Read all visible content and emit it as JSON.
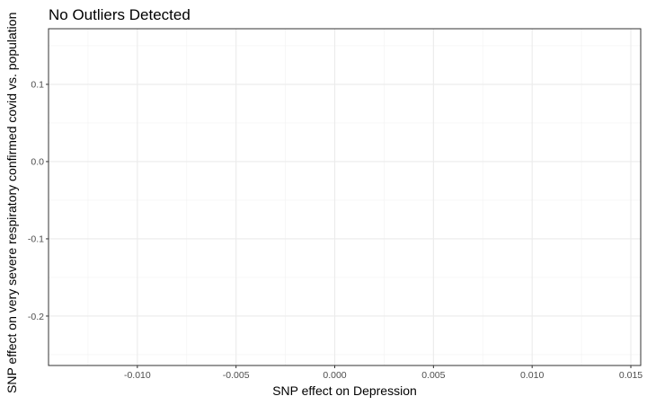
{
  "chart_data": {
    "type": "scatter",
    "title": "No Outliers Detected",
    "xlabel": "SNP effect on Depression",
    "ylabel": "SNP effect on very severe respiratory confirmed covid vs. population",
    "xlim": [
      -0.0145,
      0.0155
    ],
    "ylim": [
      -0.264,
      0.172
    ],
    "x_ticks": [
      -0.01,
      -0.005,
      0.0,
      0.005,
      0.01,
      0.015
    ],
    "x_tick_labels": [
      "-0.010",
      "-0.005",
      "0.000",
      "0.005",
      "0.010",
      "0.015"
    ],
    "y_ticks": [
      0.1,
      0.0,
      -0.1,
      -0.2
    ],
    "y_tick_labels": [
      "0.1",
      "0.0",
      "-0.1",
      "-0.2"
    ],
    "x_minor_ticks": [
      -0.0125,
      -0.0075,
      -0.0025,
      0.0025,
      0.0075,
      0.0125
    ],
    "y_minor_ticks": [
      0.15,
      0.05,
      -0.05,
      -0.15,
      -0.25
    ],
    "grid": true,
    "points": []
  }
}
